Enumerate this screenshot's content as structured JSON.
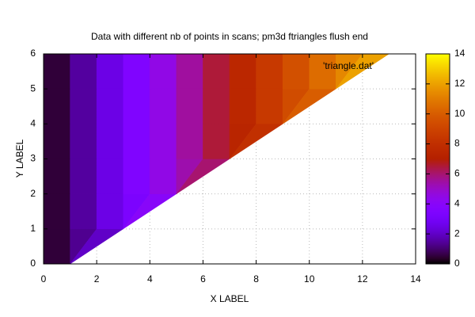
{
  "chart_data": {
    "type": "pm3d",
    "title": "Data with different nb of points in scans; pm3d ftriangles flush end",
    "xlabel": "X LABEL",
    "ylabel": "Y LABEL",
    "key": "'triangle.dat'",
    "xlim": [
      0,
      14
    ],
    "xticks": [
      0,
      2,
      4,
      6,
      8,
      10,
      12,
      14
    ],
    "ylim": [
      0,
      6
    ],
    "yticks": [
      0,
      1,
      2,
      3,
      4,
      5,
      6
    ],
    "cblim": [
      0,
      14
    ],
    "cbticks": [
      0,
      2,
      4,
      6,
      8,
      10,
      12,
      14
    ],
    "grid": true,
    "scans": [
      {
        "y": 0,
        "x": [
          0,
          1
        ],
        "z": [
          0,
          1
        ]
      },
      {
        "y": 1,
        "x": [
          0,
          1,
          2,
          3
        ],
        "z": [
          0,
          1,
          2,
          3
        ]
      },
      {
        "y": 2,
        "x": [
          0,
          1,
          2,
          3,
          4,
          5
        ],
        "z": [
          0,
          1,
          2,
          3,
          4,
          5
        ]
      },
      {
        "y": 3,
        "x": [
          0,
          1,
          2,
          3,
          4,
          5,
          6,
          7
        ],
        "z": [
          0,
          1,
          2,
          3,
          4,
          5,
          6,
          7
        ]
      },
      {
        "y": 4,
        "x": [
          0,
          1,
          2,
          3,
          4,
          5,
          6,
          7,
          8,
          9
        ],
        "z": [
          0,
          1,
          2,
          3,
          4,
          5,
          6,
          7,
          8,
          9
        ]
      },
      {
        "y": 5,
        "x": [
          0,
          1,
          2,
          3,
          4,
          5,
          6,
          7,
          8,
          9,
          10,
          11
        ],
        "z": [
          0,
          1,
          2,
          3,
          4,
          5,
          6,
          7,
          8,
          9,
          10,
          11
        ]
      },
      {
        "y": 6,
        "x": [
          0,
          1,
          2,
          3,
          4,
          5,
          6,
          7,
          8,
          9,
          10,
          11,
          12,
          13
        ],
        "z": [
          0,
          1,
          2,
          3,
          4,
          5,
          6,
          7,
          8,
          9,
          10,
          11,
          12,
          13
        ]
      }
    ]
  }
}
